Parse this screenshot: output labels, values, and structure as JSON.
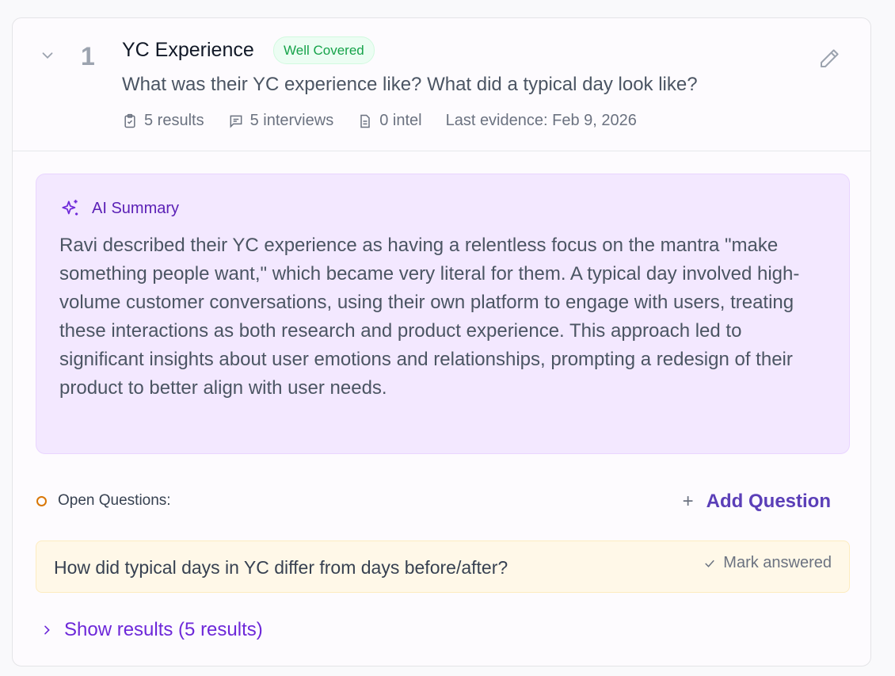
{
  "section": {
    "number": "1",
    "title": "YC Experience",
    "badge": "Well Covered",
    "question": "What was their YC experience like? What did a typical day look like?",
    "meta": {
      "results": "5 results",
      "interviews": "5 interviews",
      "intel": "0 intel",
      "last_evidence": "Last evidence: Feb 9, 2026"
    }
  },
  "summary": {
    "heading": "AI Summary",
    "text": "Ravi described their YC experience as having a relentless focus on the mantra \"make something people want,\" which became very literal for them. A typical day involved high-volume customer conversations, using their own platform to engage with users, treating these interactions as both research and product experience. This approach led to significant insights about user emotions and relationships, prompting a redesign of their product to better align with user needs."
  },
  "open_questions": {
    "label": "Open Questions:",
    "add_label": "Add Question",
    "items": [
      {
        "text": "How did typical days in YC differ from days before/after?",
        "action": "Mark answered"
      }
    ]
  },
  "show_results": "Show results (5 results)",
  "colors": {
    "accent": "#5b3fb8",
    "badge_green": "#16a34a",
    "summary_bg": "#f3e8ff",
    "question_bg": "#fff8e8"
  }
}
